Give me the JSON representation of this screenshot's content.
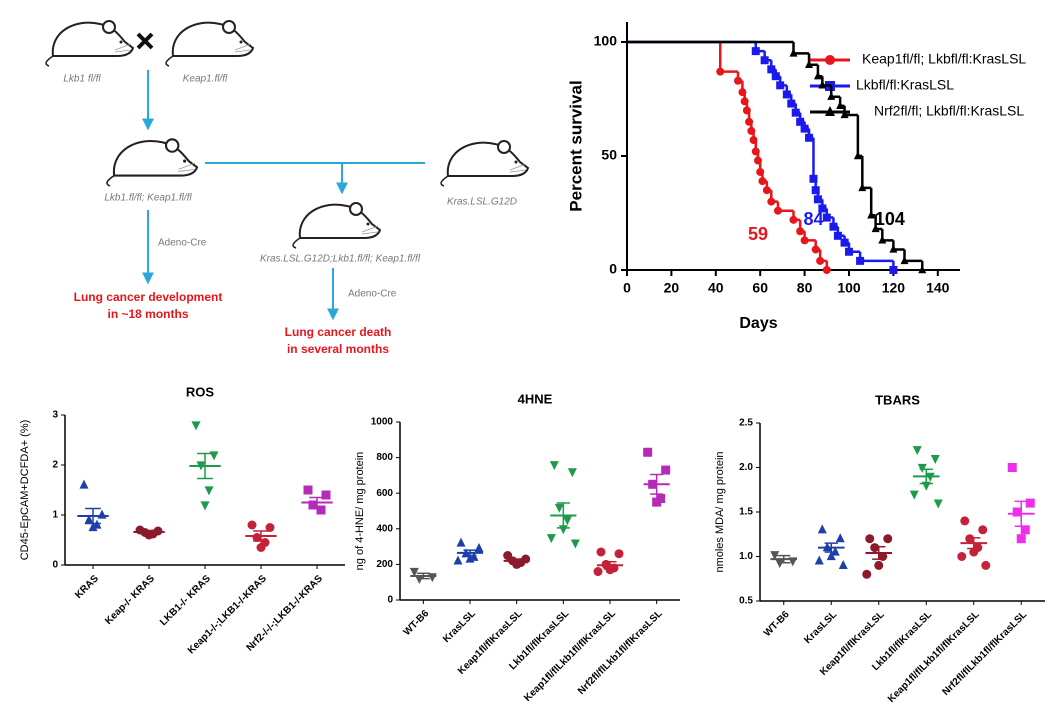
{
  "diagram": {
    "parent_a": "Lkb1 fl/fl",
    "parent_b": "Keap1.fl/fl",
    "cross": "Lkb1.fl/fl; Keap1.fl/fl",
    "kras": "Kras.LSL.G12D",
    "triple": "Kras.LSL.G12D;Lkb1.fl/fl; Keap1.fl/fl",
    "cre_left": "Adeno-Cre",
    "cre_right": "Adeno-Cre",
    "outcome_left": [
      "Lung cancer development",
      "in ~18 months"
    ],
    "outcome_right": [
      "Lung cancer death",
      "in several months"
    ]
  },
  "chart_data": [
    {
      "type": "line",
      "step": true,
      "xlabel": "Days",
      "ylabel": "Percent survival",
      "xlim": [
        0,
        150
      ],
      "xticks": [
        0,
        20,
        40,
        60,
        80,
        100,
        120,
        140
      ],
      "ylim": [
        0,
        100
      ],
      "yticks": [
        0,
        50,
        100
      ],
      "series": [
        {
          "name": "Keap1fl/fl; Lkbfl/fl:KrasLSL",
          "color": "#e8151b",
          "marker": "circle",
          "median": 59,
          "x": [
            0,
            42,
            50,
            52,
            53,
            54,
            55,
            56,
            57,
            58,
            59,
            60,
            61,
            63,
            65,
            68,
            75,
            78,
            80,
            85,
            87,
            90
          ],
          "values": [
            100,
            87,
            83,
            78,
            74,
            70,
            65,
            61,
            57,
            52,
            48,
            43,
            39,
            35,
            30,
            26,
            22,
            17,
            13,
            9,
            4,
            0
          ]
        },
        {
          "name": "Lkbfl/fl:KrasLSL",
          "color": "#1a1aef",
          "marker": "square",
          "median": 84,
          "x": [
            0,
            58,
            62,
            65,
            67,
            69,
            72,
            74,
            76,
            78,
            80,
            82,
            84,
            85,
            86,
            88,
            90,
            93,
            95,
            98,
            100,
            105,
            120
          ],
          "values": [
            100,
            96,
            92,
            88,
            85,
            81,
            77,
            73,
            69,
            65,
            62,
            58,
            40,
            35,
            31,
            27,
            23,
            19,
            15,
            12,
            8,
            4,
            0
          ]
        },
        {
          "name": "Nrf2fl/fl; Lkbfl/fl:KrasLSL",
          "color": "#000000",
          "marker": "triangle",
          "median": 104,
          "x": [
            0,
            75,
            82,
            86,
            88,
            92,
            96,
            98,
            104,
            106,
            110,
            112,
            115,
            120,
            125,
            133
          ],
          "values": [
            100,
            95,
            90,
            85,
            81,
            76,
            72,
            68,
            50,
            36,
            24,
            18,
            13,
            9,
            4,
            0
          ]
        }
      ]
    },
    {
      "type": "dot",
      "title": "ROS",
      "ylabel": "CD45-EpCAM+DCFDA+ (%)",
      "ylim": [
        0,
        3
      ],
      "yticks": [
        0,
        1,
        2,
        3
      ],
      "groups": [
        {
          "name": "KRAS",
          "color": "#1f3fa8",
          "marker": "triangle",
          "values": [
            1.6,
            1.0,
            0.9,
            0.8,
            0.75
          ],
          "mean": 0.98,
          "sem": 0.15
        },
        {
          "name": "Keap-/- KRAS",
          "color": "#8b1a2b",
          "marker": "circle",
          "values": [
            0.7,
            0.68,
            0.65,
            0.62,
            0.6
          ],
          "mean": 0.66,
          "sem": 0.03
        },
        {
          "name": "LKB1-/- KRAS",
          "color": "#1e9a4a",
          "marker": "triangle-down",
          "values": [
            2.8,
            2.2,
            2.0,
            1.5,
            1.2
          ],
          "mean": 1.98,
          "sem": 0.25
        },
        {
          "name": "Keap1-/-;LKB1-/-KRAS",
          "color": "#c4213a",
          "marker": "circle",
          "values": [
            0.8,
            0.75,
            0.55,
            0.45,
            0.35
          ],
          "mean": 0.58,
          "sem": 0.1
        },
        {
          "name": "Nrf2-/-/-;LKB1-/-KRAS",
          "color": "#b52bb8",
          "marker": "square",
          "values": [
            1.5,
            1.4,
            1.2,
            1.1
          ],
          "mean": 1.25,
          "sem": 0.1
        }
      ]
    },
    {
      "type": "dot",
      "title": "4HNE",
      "ylabel": "ng of 4-HNE/ mg protein",
      "ylim": [
        0,
        1000
      ],
      "yticks": [
        0,
        200,
        400,
        600,
        800,
        1000
      ],
      "groups": [
        {
          "name": "WT-B6",
          "color": "#555555",
          "marker": "triangle-down",
          "values": [
            160,
            130,
            120
          ],
          "mean": 135,
          "sem": 15
        },
        {
          "name": "KrasLSL",
          "color": "#1f3fa8",
          "marker": "triangle",
          "values": [
            320,
            290,
            260,
            240,
            230,
            220
          ],
          "mean": 265,
          "sem": 15
        },
        {
          "name": "Keap1fl/flKrasLSL",
          "color": "#8b1a2b",
          "marker": "circle",
          "values": [
            250,
            230,
            220,
            210,
            200
          ],
          "mean": 220,
          "sem": 10
        },
        {
          "name": "Lkb1fl/flKrasLSL",
          "color": "#1e9a4a",
          "marker": "triangle-down",
          "values": [
            760,
            720,
            520,
            450,
            400,
            350,
            320
          ],
          "mean": 475,
          "sem": 70
        },
        {
          "name": "Keap1fl/flLkb1fl/flKrasLSL",
          "color": "#c4213a",
          "marker": "circle",
          "values": [
            270,
            260,
            200,
            180,
            170,
            160
          ],
          "mean": 195,
          "sem": 20
        },
        {
          "name": "Nrf2fl/flLkb1fl/flKrasLSL",
          "color": "#b52bb8",
          "marker": "square",
          "values": [
            830,
            730,
            650,
            570,
            550
          ],
          "mean": 650,
          "sem": 55
        }
      ]
    },
    {
      "type": "dot",
      "title": "TBARS",
      "ylabel": "nmoles MDA/ mg protein",
      "ylim": [
        0.5,
        2.5
      ],
      "yticks": [
        {
          "value": 0.5,
          "label": "0.5"
        },
        {
          "value": 1,
          "label": "1.0"
        },
        {
          "value": 1.5,
          "label": "1.5"
        },
        {
          "value": 2,
          "label": "2.0"
        },
        {
          "value": 2.5,
          "label": "2.5"
        }
      ],
      "groups": [
        {
          "name": "WT-B6",
          "color": "#555555",
          "marker": "triangle-down",
          "values": [
            1.02,
            0.95,
            0.93
          ],
          "mean": 0.97,
          "sem": 0.04
        },
        {
          "name": "KrasLSL",
          "color": "#1f3fa8",
          "marker": "triangle",
          "values": [
            1.3,
            1.2,
            1.1,
            1.05,
            1.0,
            0.95,
            0.9
          ],
          "mean": 1.1,
          "sem": 0.05
        },
        {
          "name": "Keap1fl/flKrasLSL",
          "color": "#8b1a2b",
          "marker": "circle",
          "values": [
            1.2,
            1.2,
            1.1,
            1.0,
            0.9,
            0.8
          ],
          "mean": 1.04,
          "sem": 0.07
        },
        {
          "name": "Lkb1fl/flKrasLSL",
          "color": "#1e9a4a",
          "marker": "triangle-down",
          "values": [
            2.2,
            2.1,
            2.0,
            1.9,
            1.8,
            1.7,
            1.6
          ],
          "mean": 1.9,
          "sem": 0.08
        },
        {
          "name": "Keap1fl/flLkb1fl/flKrasLSL",
          "color": "#c4213a",
          "marker": "circle",
          "values": [
            1.4,
            1.3,
            1.2,
            1.1,
            1.05,
            1.0,
            0.9
          ],
          "mean": 1.15,
          "sem": 0.06
        },
        {
          "name": "Nrf2fl/flLkb1fl/flKrasLSL",
          "color": "#ee2ee8",
          "marker": "square",
          "values": [
            2.0,
            1.6,
            1.5,
            1.3,
            1.2
          ],
          "mean": 1.48,
          "sem": 0.14
        }
      ]
    }
  ]
}
